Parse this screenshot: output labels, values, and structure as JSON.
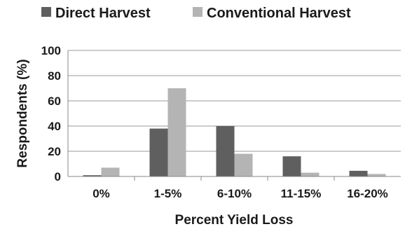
{
  "chart_data": {
    "type": "bar",
    "title": "",
    "xlabel": "Percent Yield Loss",
    "ylabel": "Respondents (%)",
    "categories": [
      "0%",
      "1-5%",
      "6-10%",
      "11-15%",
      "16-20%"
    ],
    "series": [
      {
        "name": "Direct Harvest",
        "color": "#5f5f5f",
        "values": [
          1,
          38,
          40,
          16,
          4.5
        ]
      },
      {
        "name": "Conventional Harvest",
        "color": "#b4b4b4",
        "values": [
          7,
          70,
          18,
          3,
          2
        ]
      }
    ],
    "ylim": [
      0,
      100
    ],
    "yticks": [
      "0",
      "20",
      "40",
      "60",
      "80",
      "100"
    ],
    "grid": true,
    "legend": "top"
  }
}
